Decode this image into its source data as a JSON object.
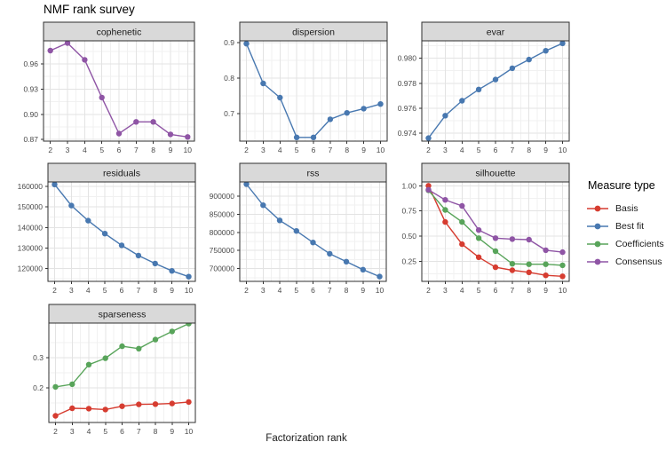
{
  "title": "NMF rank survey",
  "xlabel": "Factorization rank",
  "colors": {
    "basis": "#d63c30",
    "best_fit": "#4878b0",
    "coefficients": "#58a45a",
    "consensus": "#8f55a5",
    "strip_bg": "#d9d9d9",
    "panel_border": "#2f2f2f",
    "grid_major": "#e3e3e3",
    "grid_minor": "#f1f1f1",
    "tick_label": "#4a4a4a"
  },
  "legend": {
    "title": "Measure type",
    "entries": [
      {
        "label": "Basis",
        "color": "#d63c30"
      },
      {
        "label": "Best fit",
        "color": "#4878b0"
      },
      {
        "label": "Coefficients",
        "color": "#58a45a"
      },
      {
        "label": "Consensus",
        "color": "#8f55a5"
      }
    ]
  },
  "chart_data": [
    {
      "type": "line",
      "id": "cophenetic",
      "title": "cophenetic",
      "x": [
        2,
        3,
        4,
        5,
        6,
        7,
        8,
        9,
        10
      ],
      "xticks": [
        2,
        3,
        4,
        5,
        6,
        7,
        8,
        9,
        10
      ],
      "xlim": [
        1.6,
        10.4
      ],
      "ylim": [
        0.868,
        0.9876
      ],
      "yticks": [
        {
          "label": "0.87",
          "value": 0.87
        },
        {
          "label": "0.90",
          "value": 0.9
        },
        {
          "label": "0.93",
          "value": 0.93
        },
        {
          "label": "0.96",
          "value": 0.96
        }
      ],
      "series": [
        {
          "name": "Consensus",
          "color": "#8f55a5",
          "values": [
            0.976,
            0.985,
            0.965,
            0.92,
            0.877,
            0.891,
            0.891,
            0.876,
            0.873
          ]
        }
      ]
    },
    {
      "type": "line",
      "id": "dispersion",
      "title": "dispersion",
      "x": [
        2,
        3,
        4,
        5,
        6,
        7,
        8,
        9,
        10
      ],
      "xticks": [
        2,
        3,
        4,
        5,
        6,
        7,
        8,
        9,
        10
      ],
      "xlim": [
        1.6,
        10.4
      ],
      "ylim": [
        0.6225,
        0.905
      ],
      "yticks": [
        {
          "label": "0.7",
          "value": 0.7
        },
        {
          "label": "0.8",
          "value": 0.8
        },
        {
          "label": "0.9",
          "value": 0.9
        }
      ],
      "series": [
        {
          "name": "Best fit",
          "color": "#4878b0",
          "values": [
            0.897,
            0.785,
            0.745,
            0.633,
            0.633,
            0.684,
            0.702,
            0.714,
            0.727
          ]
        }
      ]
    },
    {
      "type": "line",
      "id": "evar",
      "title": "evar",
      "x": [
        2,
        3,
        4,
        5,
        6,
        7,
        8,
        9,
        10
      ],
      "xticks": [
        2,
        3,
        4,
        5,
        6,
        7,
        8,
        9,
        10
      ],
      "xlim": [
        1.6,
        10.4
      ],
      "ylim": [
        0.97336,
        0.9814
      ],
      "yticks": [
        {
          "label": "0.974",
          "value": 0.974
        },
        {
          "label": "0.976",
          "value": 0.976
        },
        {
          "label": "0.978",
          "value": 0.978
        },
        {
          "label": "0.980",
          "value": 0.98
        }
      ],
      "series": [
        {
          "name": "Best fit",
          "color": "#4878b0",
          "values": [
            0.9736,
            0.9754,
            0.9766,
            0.9775,
            0.9783,
            0.9792,
            0.9799,
            0.9806,
            0.9812
          ]
        }
      ]
    },
    {
      "type": "line",
      "id": "residuals",
      "title": "residuals",
      "x": [
        2,
        3,
        4,
        5,
        6,
        7,
        8,
        9,
        10
      ],
      "xticks": [
        2,
        3,
        4,
        5,
        6,
        7,
        8,
        9,
        10
      ],
      "xlim": [
        1.6,
        10.4
      ],
      "ylim": [
        113700,
        162200
      ],
      "yticks": [
        {
          "label": "120000",
          "value": 120000
        },
        {
          "label": "130000",
          "value": 130000
        },
        {
          "label": "140000",
          "value": 140000
        },
        {
          "label": "150000",
          "value": 150000
        },
        {
          "label": "160000",
          "value": 160000
        }
      ],
      "series": [
        {
          "name": "Best fit",
          "color": "#4878b0",
          "values": [
            161000,
            150700,
            143300,
            137000,
            131300,
            126300,
            122400,
            118800,
            116000
          ]
        }
      ]
    },
    {
      "type": "line",
      "id": "rss",
      "title": "rss",
      "x": [
        2,
        3,
        4,
        5,
        6,
        7,
        8,
        9,
        10
      ],
      "xticks": [
        2,
        3,
        4,
        5,
        6,
        7,
        8,
        9,
        10
      ],
      "xlim": [
        1.6,
        10.4
      ],
      "ylim": [
        664700,
        939200
      ],
      "yticks": [
        {
          "label": "700000",
          "value": 700000
        },
        {
          "label": "750000",
          "value": 750000
        },
        {
          "label": "800000",
          "value": 800000
        },
        {
          "label": "850000",
          "value": 850000
        },
        {
          "label": "900000",
          "value": 900000
        }
      ],
      "series": [
        {
          "name": "Best fit",
          "color": "#4878b0",
          "values": [
            933000,
            875000,
            833000,
            804000,
            772000,
            741000,
            719000,
            697000,
            678000
          ]
        }
      ]
    },
    {
      "type": "line",
      "id": "silhouette",
      "title": "silhouette",
      "x": [
        2,
        3,
        4,
        5,
        6,
        7,
        8,
        9,
        10
      ],
      "xticks": [
        2,
        3,
        4,
        5,
        6,
        7,
        8,
        9,
        10
      ],
      "xlim": [
        1.6,
        10.4
      ],
      "ylim": [
        0.05,
        1.038
      ],
      "yticks": [
        {
          "label": "0.25",
          "value": 0.25
        },
        {
          "label": "0.50",
          "value": 0.5
        },
        {
          "label": "0.75",
          "value": 0.75
        },
        {
          "label": "1.00",
          "value": 1.0
        }
      ],
      "series": [
        {
          "name": "Basis",
          "color": "#d63c30",
          "values": [
            1.0,
            0.64,
            0.42,
            0.29,
            0.19,
            0.16,
            0.14,
            0.11,
            0.1
          ]
        },
        {
          "name": "Coefficients",
          "color": "#58a45a",
          "values": [
            0.955,
            0.76,
            0.64,
            0.48,
            0.35,
            0.225,
            0.22,
            0.22,
            0.21
          ]
        },
        {
          "name": "Consensus",
          "color": "#8f55a5",
          "values": [
            0.96,
            0.86,
            0.8,
            0.56,
            0.48,
            0.47,
            0.465,
            0.36,
            0.34
          ]
        }
      ]
    },
    {
      "type": "line",
      "id": "sparseness",
      "title": "sparseness",
      "x": [
        2,
        3,
        4,
        5,
        6,
        7,
        8,
        9,
        10
      ],
      "xticks": [
        2,
        3,
        4,
        5,
        6,
        7,
        8,
        9,
        10
      ],
      "xlim": [
        1.6,
        10.4
      ],
      "ylim": [
        0.085,
        0.4147
      ],
      "yticks": [
        {
          "label": "0.2",
          "value": 0.2
        },
        {
          "label": "0.3",
          "value": 0.3
        }
      ],
      "series": [
        {
          "name": "Basis",
          "color": "#d63c30",
          "values": [
            0.107,
            0.132,
            0.131,
            0.128,
            0.139,
            0.145,
            0.146,
            0.148,
            0.153
          ]
        },
        {
          "name": "Coefficients",
          "color": "#58a45a",
          "values": [
            0.203,
            0.212,
            0.277,
            0.298,
            0.338,
            0.33,
            0.36,
            0.387,
            0.413
          ]
        }
      ]
    }
  ]
}
